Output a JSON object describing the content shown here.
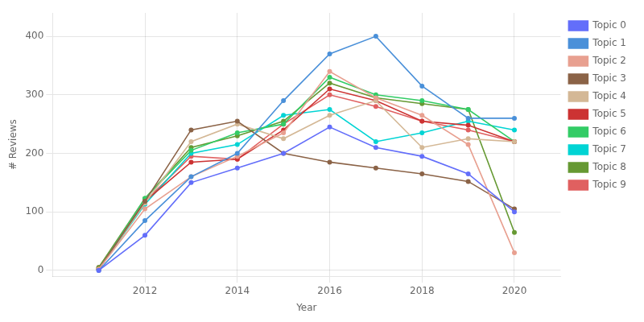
{
  "chart_data": {
    "type": "line",
    "x": [
      2011,
      2012,
      2013,
      2014,
      2015,
      2016,
      2017,
      2018,
      2019,
      2020
    ],
    "series": [
      {
        "name": "Topic 0",
        "color": "#636efa",
        "values": [
          0,
          60,
          150,
          175,
          200,
          245,
          210,
          195,
          165,
          100
        ]
      },
      {
        "name": "Topic 1",
        "color": "#4a90d9",
        "values": [
          0,
          85,
          160,
          200,
          290,
          370,
          400,
          315,
          260,
          260
        ]
      },
      {
        "name": "Topic 2",
        "color": "#e8a090",
        "values": [
          2,
          105,
          160,
          195,
          235,
          340,
          295,
          265,
          215,
          30
        ]
      },
      {
        "name": "Topic 3",
        "color": "#8b6347",
        "values": [
          2,
          118,
          240,
          255,
          200,
          185,
          175,
          165,
          152,
          105
        ]
      },
      {
        "name": "Topic 4",
        "color": "#d4b896",
        "values": [
          2,
          115,
          220,
          250,
          225,
          265,
          290,
          210,
          225,
          220
        ]
      },
      {
        "name": "Topic 5",
        "color": "#cc3333",
        "values": [
          2,
          118,
          185,
          190,
          240,
          310,
          290,
          255,
          248,
          220
        ]
      },
      {
        "name": "Topic 6",
        "color": "#33cc66",
        "values": [
          2,
          123,
          205,
          235,
          250,
          330,
          300,
          290,
          275,
          220
        ]
      },
      {
        "name": "Topic 7",
        "color": "#00d4d4",
        "values": [
          2,
          113,
          200,
          215,
          265,
          275,
          220,
          235,
          255,
          240
        ]
      },
      {
        "name": "Topic 8",
        "color": "#669933",
        "values": [
          5,
          123,
          210,
          230,
          255,
          320,
          295,
          285,
          275,
          65
        ]
      },
      {
        "name": "Topic 9",
        "color": "#e06060",
        "values": [
          5,
          118,
          195,
          190,
          250,
          300,
          280,
          255,
          240,
          220
        ]
      }
    ],
    "xlabel": "Year",
    "ylabel": "# Reviews",
    "xlim": [
      2010,
      2021
    ],
    "xticks": [
      2012,
      2014,
      2016,
      2018,
      2020
    ],
    "ylim": [
      -10,
      440
    ],
    "yticks": [
      0,
      100,
      200,
      300,
      400
    ],
    "grid": true,
    "legend": "right",
    "marker": "circle",
    "line_style": "solid"
  }
}
